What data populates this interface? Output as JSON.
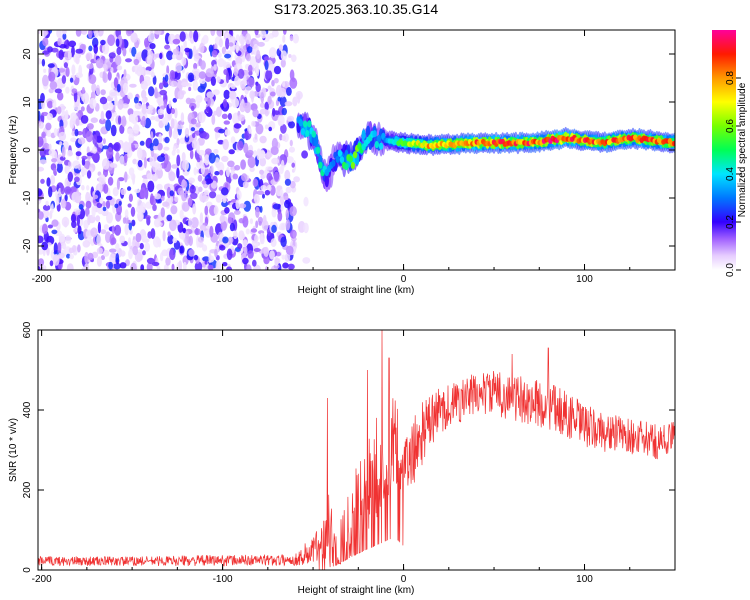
{
  "chart_data": [
    {
      "type": "heatmap",
      "title": "S173.2025.363.10.35.G14",
      "xlabel": "Height of straight line (km)",
      "ylabel": "Frequency (Hz)",
      "xlim": [
        -202,
        150
      ],
      "ylim": [
        -25,
        25
      ],
      "x_ticks": [
        -200,
        -100,
        0,
        100
      ],
      "x_tick_labels": [
        "-200",
        "-100",
        "0",
        "100"
      ],
      "y_ticks": [
        -20,
        -10,
        0,
        10,
        20
      ],
      "y_tick_labels": [
        "-20",
        "-10",
        "0",
        "10",
        "20"
      ],
      "colorbar": {
        "label": "Normalized spectral amplitude",
        "range": [
          0,
          1
        ],
        "ticks": [
          0.0,
          0.2,
          0.4,
          0.6,
          0.8
        ],
        "tick_labels": [
          "0.0",
          "0.2",
          "0.4",
          "0.6",
          "0.8"
        ]
      },
      "noise_region_x": [
        -202,
        -60
      ],
      "noise_amplitude": 0.25,
      "ridge": [
        {
          "x": -58,
          "f": 5.0,
          "a": 0.35
        },
        {
          "x": -52,
          "f": 4.0,
          "a": 0.5
        },
        {
          "x": -48,
          "f": 1.0,
          "a": 0.4
        },
        {
          "x": -45,
          "f": -4.0,
          "a": 0.45
        },
        {
          "x": -42,
          "f": -6.0,
          "a": 0.3
        },
        {
          "x": -38,
          "f": -2.0,
          "a": 0.3
        },
        {
          "x": -32,
          "f": -2.0,
          "a": 0.5
        },
        {
          "x": -28,
          "f": -2.0,
          "a": 0.65
        },
        {
          "x": -20,
          "f": 3.0,
          "a": 0.4
        },
        {
          "x": -10,
          "f": 2.0,
          "a": 0.35
        },
        {
          "x": 0,
          "f": 1.5,
          "a": 0.6
        },
        {
          "x": 15,
          "f": 1.0,
          "a": 0.75
        },
        {
          "x": 40,
          "f": 1.5,
          "a": 0.85
        },
        {
          "x": 70,
          "f": 1.5,
          "a": 0.85
        },
        {
          "x": 90,
          "f": 2.5,
          "a": 0.9
        },
        {
          "x": 110,
          "f": 1.5,
          "a": 0.8
        },
        {
          "x": 125,
          "f": 2.5,
          "a": 0.85
        },
        {
          "x": 150,
          "f": 1.5,
          "a": 0.8
        }
      ]
    },
    {
      "type": "line",
      "xlabel": "Height of straight line (km)",
      "ylabel": "SNR (10 * v/v)",
      "xlim": [
        -202,
        150
      ],
      "ylim": [
        0,
        600
      ],
      "x_ticks": [
        -200,
        -100,
        0,
        100
      ],
      "x_tick_labels": [
        "-200",
        "-100",
        "0",
        "100"
      ],
      "y_ticks": [
        0,
        200,
        400,
        600
      ],
      "y_tick_labels": [
        "0",
        "200",
        "400",
        "600"
      ],
      "color": "#f03232",
      "series": [
        {
          "name": "SNR",
          "x": [
            -202,
            -150,
            -100,
            -60,
            -45,
            -42,
            -38,
            -30,
            -20,
            -12,
            -5,
            0,
            10,
            20,
            30,
            40,
            50,
            60,
            70,
            80,
            90,
            100,
            110,
            120,
            130,
            140,
            150
          ],
          "base": [
            22,
            22,
            24,
            25,
            60,
            130,
            40,
            120,
            210,
            270,
            330,
            240,
            340,
            400,
            420,
            440,
            445,
            430,
            420,
            410,
            390,
            360,
            345,
            340,
            330,
            320,
            330
          ],
          "noise": [
            12,
            12,
            14,
            14,
            60,
            150,
            40,
            100,
            120,
            140,
            110,
            90,
            80,
            60,
            55,
            55,
            55,
            60,
            60,
            60,
            60,
            55,
            50,
            45,
            45,
            45,
            45
          ]
        }
      ],
      "peaks": [
        {
          "x": -12,
          "y": 600
        },
        {
          "x": -20,
          "y": 500
        },
        {
          "x": -8,
          "y": 530
        },
        {
          "x": -42,
          "y": 430
        },
        {
          "x": 80,
          "y": 555
        },
        {
          "x": 60,
          "y": 540
        }
      ]
    }
  ]
}
